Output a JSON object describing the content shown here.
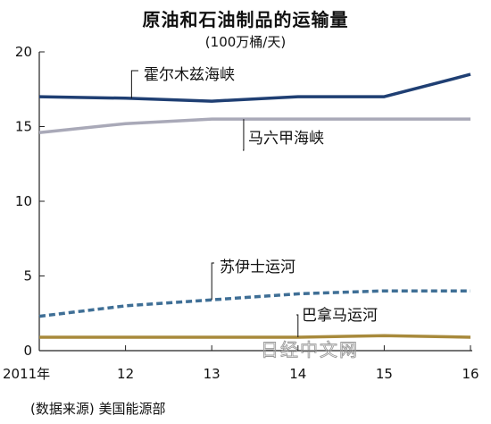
{
  "chart_data": {
    "type": "line",
    "title": "原油和石油制品的运输量",
    "subtitle": "(100万桶/天)",
    "x": [
      2011,
      2012,
      2013,
      2014,
      2015,
      2016
    ],
    "x_tick_labels": [
      "2011年",
      "12",
      "13",
      "14",
      "15",
      "16"
    ],
    "y_ticks": [
      0,
      5,
      10,
      15,
      20
    ],
    "ylim": [
      0,
      20
    ],
    "grid": false,
    "series": [
      {
        "name": "霍尔木兹海峡",
        "values": [
          17.0,
          16.9,
          16.7,
          17.0,
          17.0,
          18.5
        ],
        "color": "#1f3f73",
        "style": "solid"
      },
      {
        "name": "马六甲海峡",
        "values": [
          14.6,
          15.2,
          15.5,
          15.5,
          15.5,
          15.5
        ],
        "color": "#a9a9b8",
        "style": "solid"
      },
      {
        "name": "苏伊士运河",
        "values": [
          2.3,
          3.0,
          3.4,
          3.8,
          4.0,
          4.0
        ],
        "color": "#3f6f96",
        "style": "dashed"
      },
      {
        "name": "巴拿马运河",
        "values": [
          0.9,
          0.9,
          0.9,
          0.9,
          1.0,
          0.9
        ],
        "color": "#a88a3c",
        "style": "solid"
      }
    ],
    "source": "(数据来源) 美国能源部",
    "watermark": "日经中文网"
  }
}
